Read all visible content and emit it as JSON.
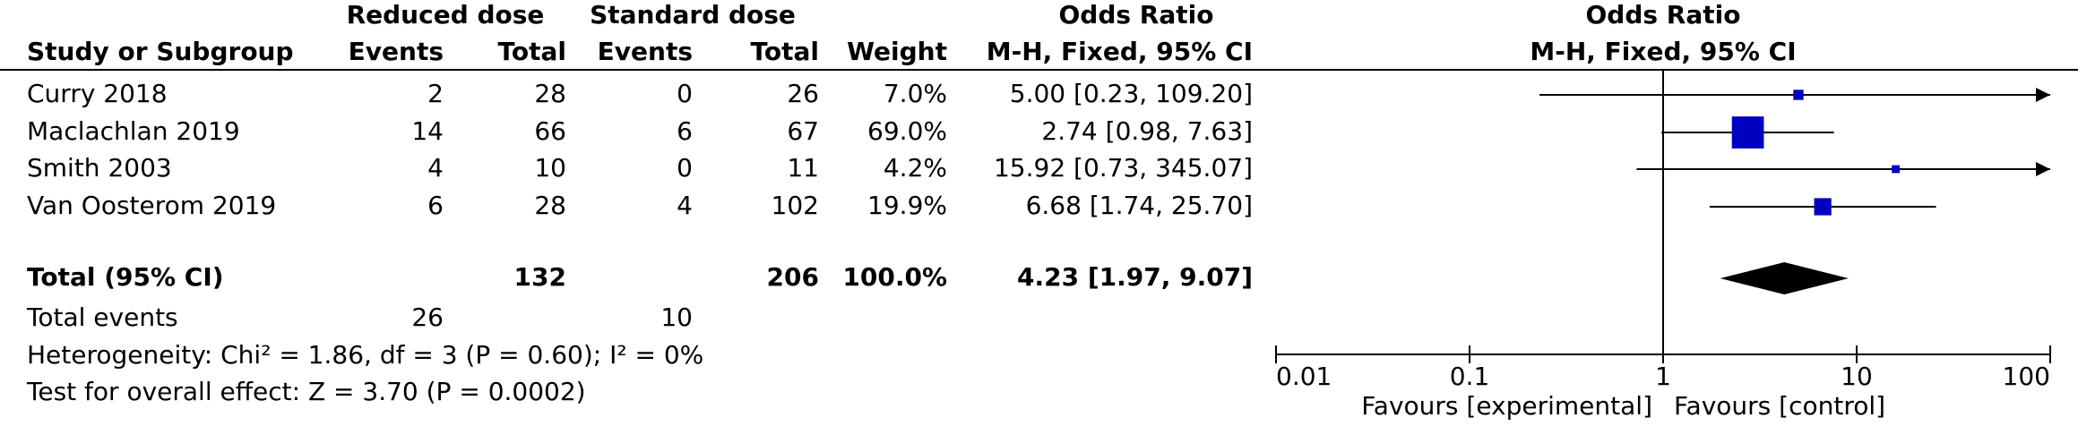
{
  "chart_data": {
    "type": "forest",
    "group_headers": {
      "experimental": "Reduced dose",
      "control": "Standard dose",
      "table_or": "Odds Ratio",
      "plot_or": "Odds Ratio"
    },
    "columns": {
      "study": "Study or Subgroup",
      "events_exp": "Events",
      "total_exp": "Total",
      "events_ctrl": "Events",
      "total_ctrl": "Total",
      "weight": "Weight",
      "table_method": "M-H, Fixed, 95% CI",
      "plot_method": "M-H, Fixed, 95% CI"
    },
    "studies": [
      {
        "name": "Curry 2018",
        "events_exp": 2,
        "total_exp": 28,
        "events_ctrl": 0,
        "total_ctrl": 26,
        "weight": 7.0,
        "weight_label": "7.0%",
        "or": 5.0,
        "lo": 0.23,
        "hi": 109.2,
        "ci_label": "5.00 [0.23, 109.20]"
      },
      {
        "name": "Maclachlan 2019",
        "events_exp": 14,
        "total_exp": 66,
        "events_ctrl": 6,
        "total_ctrl": 67,
        "weight": 69.0,
        "weight_label": "69.0%",
        "or": 2.74,
        "lo": 0.98,
        "hi": 7.63,
        "ci_label": "2.74 [0.98, 7.63]"
      },
      {
        "name": "Smith 2003",
        "events_exp": 4,
        "total_exp": 10,
        "events_ctrl": 0,
        "total_ctrl": 11,
        "weight": 4.2,
        "weight_label": "4.2%",
        "or": 15.92,
        "lo": 0.73,
        "hi": 345.07,
        "ci_label": "15.92 [0.73, 345.07]"
      },
      {
        "name": "Van Oosterom 2019",
        "events_exp": 6,
        "total_exp": 28,
        "events_ctrl": 4,
        "total_ctrl": 102,
        "weight": 19.9,
        "weight_label": "19.9%",
        "or": 6.68,
        "lo": 1.74,
        "hi": 25.7,
        "ci_label": "6.68 [1.74, 25.70]"
      }
    ],
    "total": {
      "name": "Total (95% CI)",
      "total_exp": 132,
      "total_ctrl": 206,
      "weight_label": "100.0%",
      "or": 4.23,
      "lo": 1.97,
      "hi": 9.07,
      "ci_label": "4.23 [1.97, 9.07]"
    },
    "total_events": {
      "name": "Total events",
      "events_exp": 26,
      "events_ctrl": 10
    },
    "heterogeneity": "Heterogeneity: Chi² = 1.86, df = 3 (P = 0.60); I² = 0%",
    "overall_effect": "Test for overall effect: Z = 3.70 (P = 0.0002)",
    "log_scale": true,
    "xlim": [
      0.01,
      100
    ],
    "xticks": [
      0.01,
      0.1,
      1,
      10,
      100
    ],
    "favours_left": "Favours [experimental]",
    "favours_right": "Favours [control]",
    "color": "#0000c0"
  }
}
